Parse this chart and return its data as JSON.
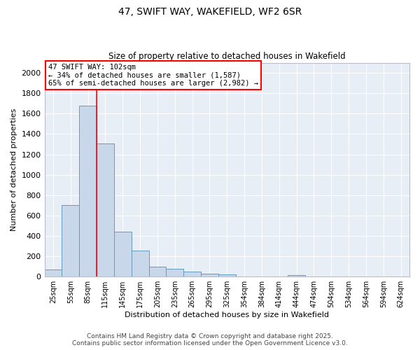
{
  "title_line1": "47, SWIFT WAY, WAKEFIELD, WF2 6SR",
  "title_line2": "Size of property relative to detached houses in Wakefield",
  "xlabel": "Distribution of detached houses by size in Wakefield",
  "ylabel": "Number of detached properties",
  "bar_color": "#c8d8ea",
  "bar_edge_color": "#6699bb",
  "background_color": "#e8eef6",
  "grid_color": "#d0d8e8",
  "categories": [
    "25sqm",
    "55sqm",
    "85sqm",
    "115sqm",
    "145sqm",
    "175sqm",
    "205sqm",
    "235sqm",
    "265sqm",
    "295sqm",
    "325sqm",
    "354sqm",
    "384sqm",
    "414sqm",
    "444sqm",
    "474sqm",
    "504sqm",
    "534sqm",
    "564sqm",
    "594sqm",
    "624sqm"
  ],
  "values": [
    70,
    700,
    1680,
    1310,
    440,
    255,
    95,
    80,
    50,
    30,
    25,
    0,
    0,
    0,
    15,
    0,
    0,
    0,
    0,
    0,
    0
  ],
  "annotation_text": "47 SWIFT WAY: 102sqm\n← 34% of detached houses are smaller (1,587)\n65% of semi-detached houses are larger (2,982) →",
  "ylim": [
    0,
    2100
  ],
  "yticks": [
    0,
    200,
    400,
    600,
    800,
    1000,
    1200,
    1400,
    1600,
    1800,
    2000
  ],
  "footer_line1": "Contains HM Land Registry data © Crown copyright and database right 2025.",
  "footer_line2": "Contains public sector information licensed under the Open Government Licence v3.0."
}
